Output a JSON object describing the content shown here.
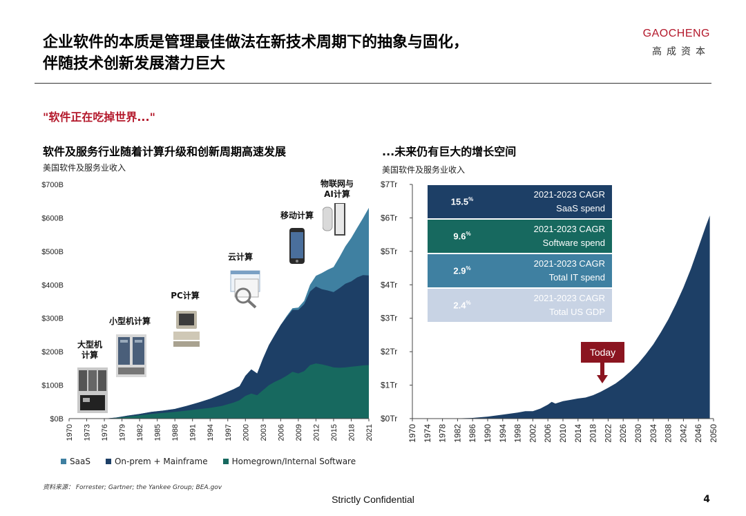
{
  "header": {
    "title_line1": "企业软件的本质是管理最佳做法在新技术周期下的抽象与固化，",
    "title_line2": "伴随技术创新发展潜力巨大",
    "logo_en": "GAOCHENG",
    "logo_cn": "高成资本"
  },
  "quote": "\"软件正在吃掉世界...\"",
  "left": {
    "heading": "软件及服务行业随着计算升级和创新周期高速发展",
    "subheading": "美国软件及服务业收入",
    "eras": [
      "大型机\n计算",
      "小型机计算",
      "PC计算",
      "云计算",
      "移动计算",
      "物联网与\nAI计算"
    ]
  },
  "right": {
    "heading": "...未来仍有巨大的增长空间",
    "subheading": "美国软件及服务业收入",
    "cagr": [
      {
        "value": "15.5",
        "unit": "%",
        "label1": "2021-2023 CAGR",
        "label2": "SaaS spend",
        "color": "#1d3f66"
      },
      {
        "value": "9.6",
        "unit": "%",
        "label1": "2021-2023 CAGR",
        "label2": "Software spend",
        "color": "#17695f"
      },
      {
        "value": "2.9",
        "unit": "%",
        "label1": "2021-2023 CAGR",
        "label2": "Total IT spend",
        "color": "#3f80a1"
      },
      {
        "value": "2.4",
        "unit": "%",
        "label1": "2021-2023 CAGR",
        "label2": "Total US GDP",
        "color": "#c8d3e4"
      }
    ],
    "today_label": "Today"
  },
  "legend": [
    {
      "label": "SaaS",
      "color": "#3f80a1"
    },
    {
      "label": "On-prem + Mainframe",
      "color": "#1d3f66"
    },
    {
      "label": "Homegrown/Internal Software",
      "color": "#17695f"
    }
  ],
  "source": "资料来源： Forrester; Gartner; the Yankee Group; BEA.gov",
  "footer": "Strictly Confidential",
  "page_number": "4",
  "chart_data": [
    {
      "type": "area",
      "stacked": true,
      "ylabel": "",
      "ylim": [
        0,
        700
      ],
      "y_ticks": [
        "$0B",
        "$100B",
        "$200B",
        "$300B",
        "$400B",
        "$500B",
        "$600B",
        "$700B"
      ],
      "x_ticks": [
        "1970",
        "1973",
        "1976",
        "1979",
        "1982",
        "1985",
        "1988",
        "1991",
        "1994",
        "1997",
        "2000",
        "2003",
        "2006",
        "2009",
        "2012",
        "2015",
        "2018",
        "2021"
      ],
      "x": [
        1970,
        1976,
        1978,
        1980,
        1982,
        1984,
        1986,
        1988,
        1990,
        1992,
        1994,
        1996,
        1998,
        1999,
        2000,
        2001,
        2002,
        2003,
        2004,
        2005,
        2006,
        2007,
        2008,
        2009,
        2010,
        2011,
        2012,
        2013,
        2014,
        2015,
        2016,
        2017,
        2018,
        2019,
        2020,
        2021
      ],
      "series": [
        {
          "name": "Homegrown/Internal Software",
          "values": [
            0,
            0,
            2,
            6,
            10,
            14,
            17,
            20,
            24,
            28,
            32,
            38,
            48,
            55,
            68,
            75,
            70,
            85,
            100,
            110,
            118,
            128,
            140,
            135,
            142,
            160,
            165,
            162,
            158,
            153,
            152,
            153,
            155,
            157,
            159,
            160
          ]
        },
        {
          "name": "On-prem + Mainframe",
          "values": [
            0,
            0,
            1,
            3,
            4,
            6,
            7,
            9,
            14,
            20,
            27,
            35,
            40,
            42,
            60,
            72,
            65,
            95,
            120,
            140,
            162,
            175,
            185,
            190,
            200,
            220,
            230,
            225,
            225,
            225,
            238,
            250,
            255,
            265,
            270,
            268
          ]
        },
        {
          "name": "SaaS",
          "values": [
            0,
            0,
            0,
            0,
            0,
            0,
            0,
            0,
            0,
            0,
            0,
            0,
            0,
            0,
            0,
            0,
            0,
            0,
            0,
            0,
            0,
            3,
            5,
            7,
            10,
            20,
            32,
            48,
            62,
            75,
            93,
            112,
            130,
            148,
            170,
            202
          ]
        }
      ]
    },
    {
      "type": "area",
      "ylim": [
        0,
        7
      ],
      "y_ticks": [
        "$0Tr",
        "$1Tr",
        "$2Tr",
        "$3Tr",
        "$4Tr",
        "$5Tr",
        "$6Tr",
        "$7Tr"
      ],
      "x_ticks": [
        "1970",
        "1974",
        "1978",
        "1982",
        "1986",
        "1990",
        "1994",
        "1998",
        "2002",
        "2006",
        "2010",
        "2014",
        "2018",
        "2022",
        "2026",
        "2030",
        "2034",
        "2038",
        "2042",
        "2046",
        "2050"
      ],
      "x": [
        1970,
        1980,
        1986,
        1990,
        1994,
        1998,
        2000,
        2002,
        2004,
        2006,
        2007,
        2008,
        2010,
        2012,
        2014,
        2016,
        2018,
        2020,
        2022,
        2024,
        2026,
        2028,
        2030,
        2032,
        2034,
        2036,
        2038,
        2040,
        2042,
        2044,
        2046,
        2048,
        2049
      ],
      "series": [
        {
          "name": "",
          "values": [
            0,
            0,
            0.02,
            0.06,
            0.12,
            0.18,
            0.22,
            0.22,
            0.3,
            0.42,
            0.5,
            0.45,
            0.52,
            0.56,
            0.6,
            0.63,
            0.7,
            0.8,
            0.92,
            1.05,
            1.22,
            1.42,
            1.65,
            1.92,
            2.22,
            2.58,
            2.97,
            3.42,
            3.92,
            4.48,
            5.12,
            5.77,
            6.07
          ]
        }
      ]
    }
  ]
}
